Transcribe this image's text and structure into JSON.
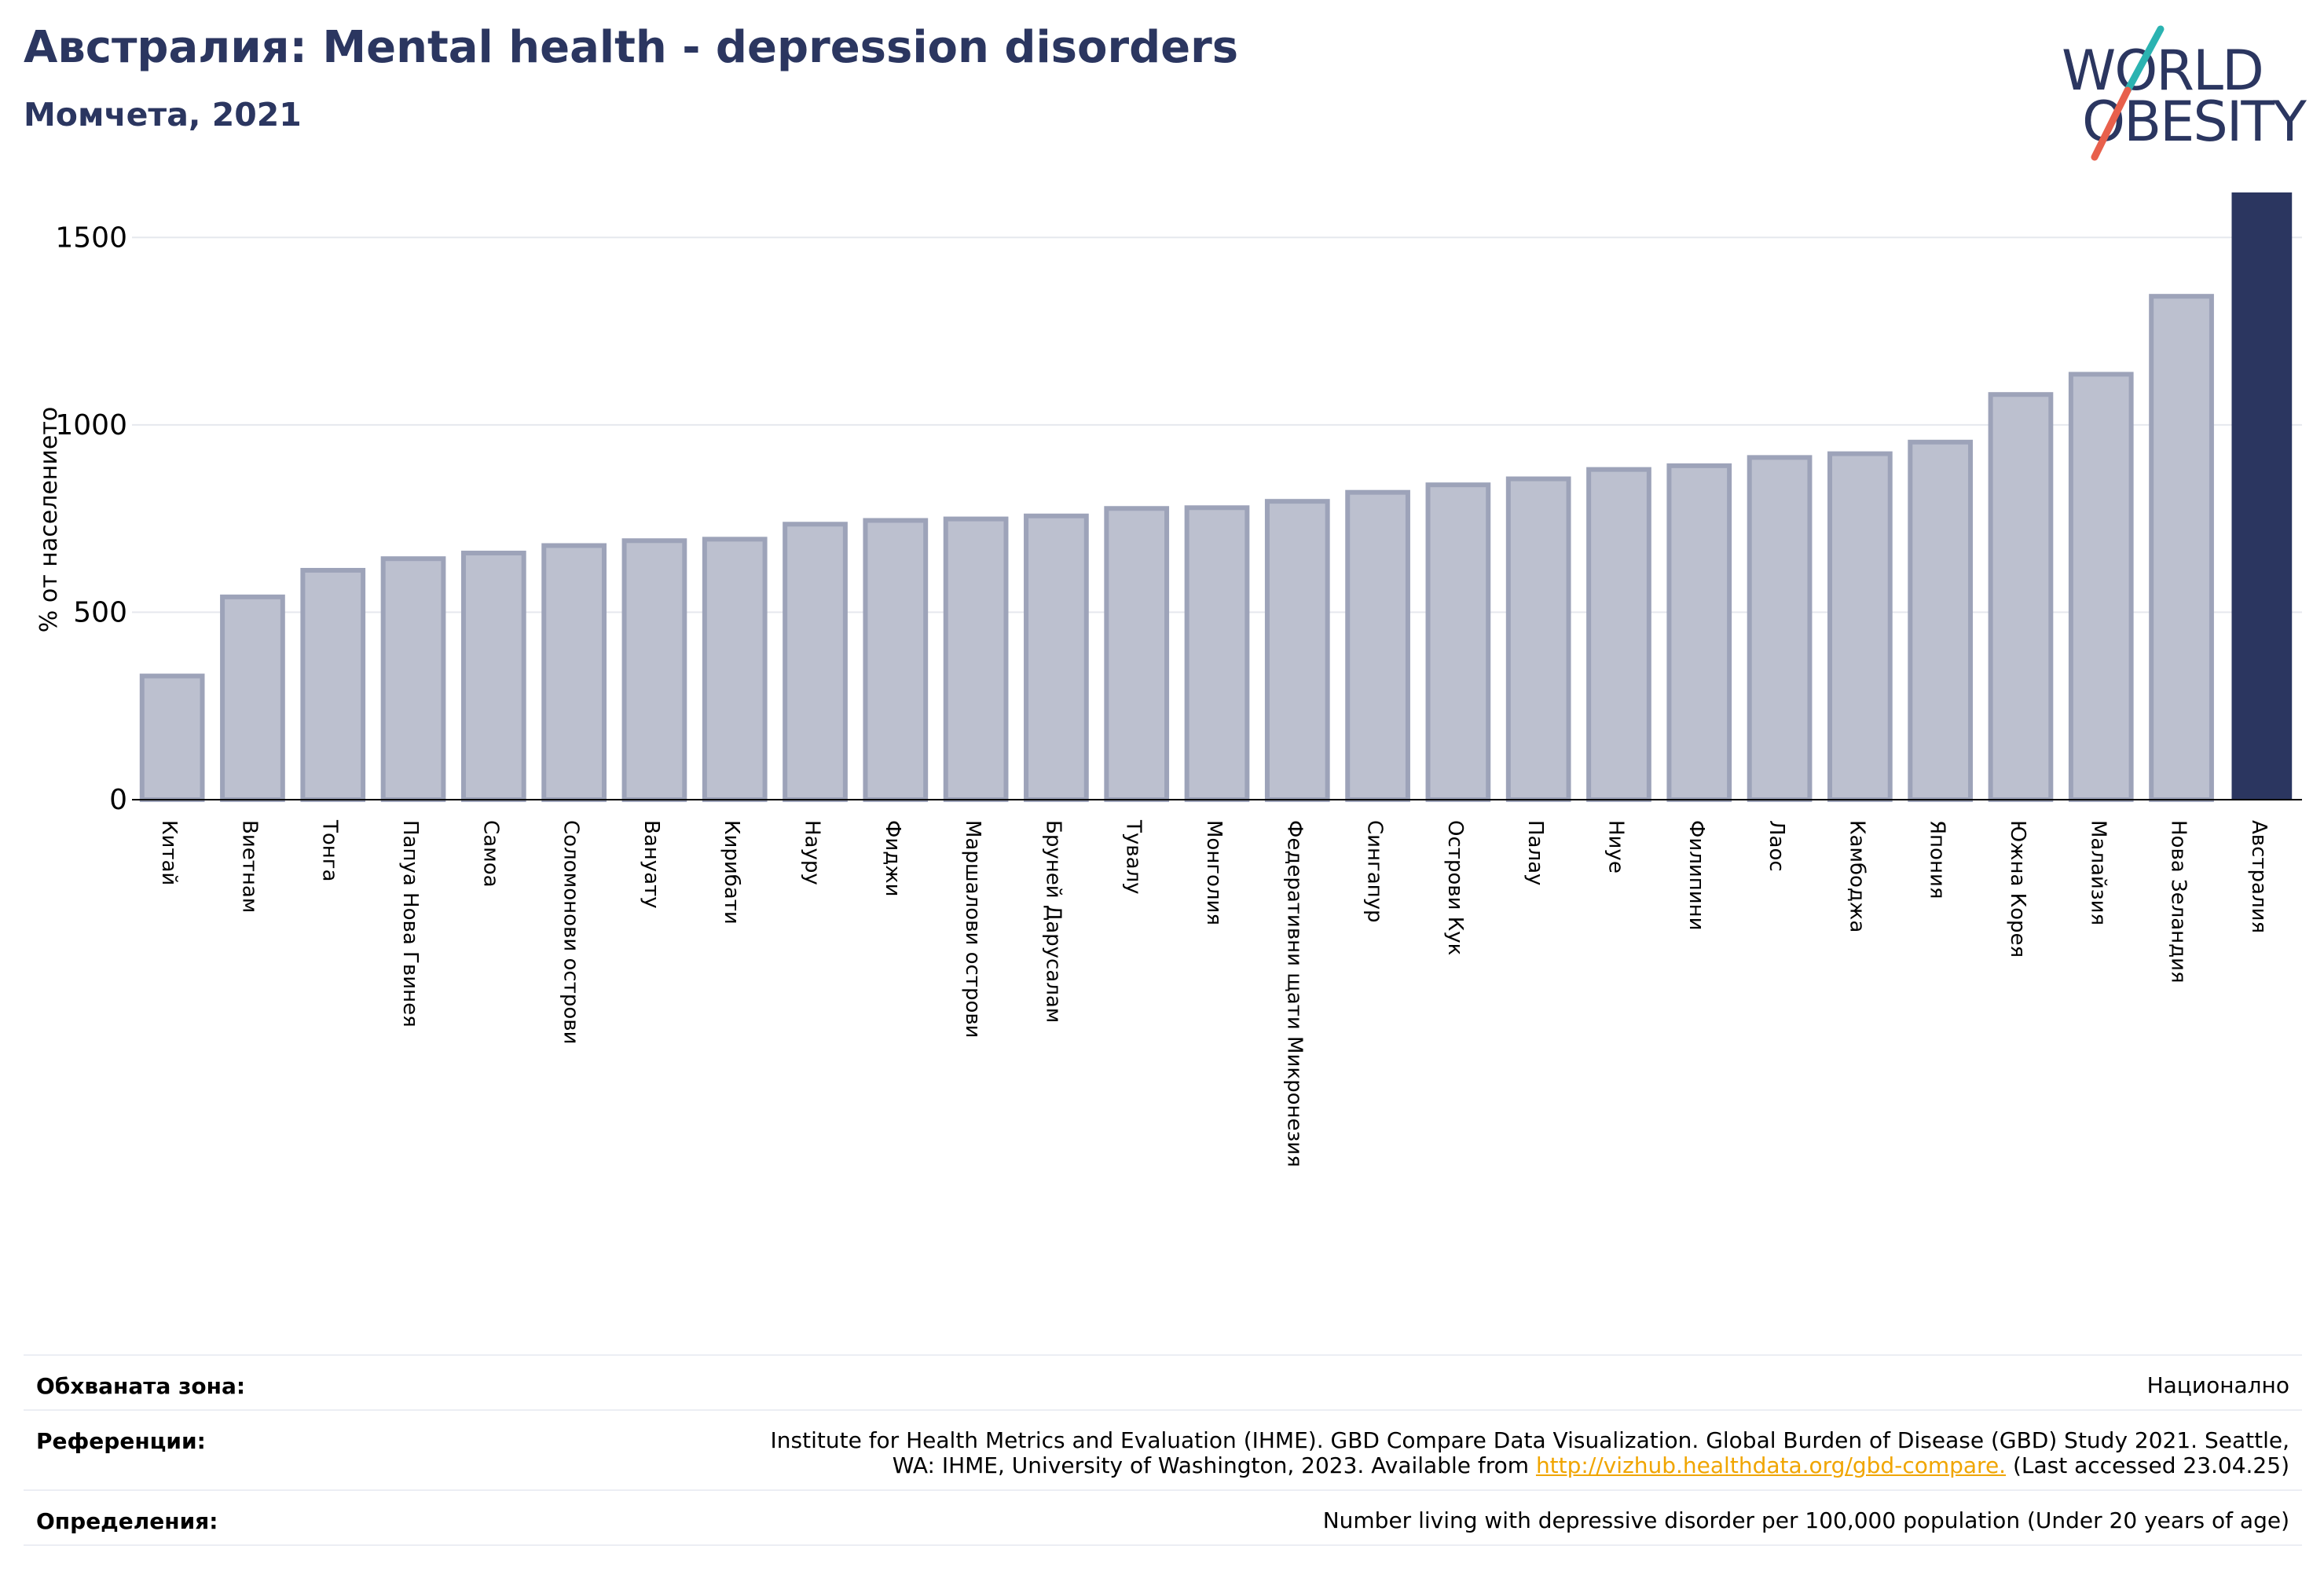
{
  "header": {
    "title": "Австралия: Mental health - depression disorders",
    "subtitle": "Момчета, 2021"
  },
  "logo": {
    "line1": "WORLD",
    "line2": "OBESITY",
    "colors": {
      "text": "#2b3660",
      "slash_top": "#2bb3b1",
      "slash_bottom": "#e8604c"
    }
  },
  "chart_data": {
    "type": "bar",
    "ylabel": "% от населението",
    "ylim": [
      0,
      1620
    ],
    "yticks": [
      0,
      500,
      1000,
      1500
    ],
    "grid": true,
    "categories": [
      "Китай",
      "Виетнам",
      "Тонга",
      "Папуа Нова Гвинея",
      "Самоа",
      "Соломонови острови",
      "Вануату",
      "Кирибати",
      "Науру",
      "Фиджи",
      "Маршалови острови",
      "Бруней Дарусалам",
      "Тувалу",
      "Монголия",
      "Федеративни щати Микронезия",
      "Сингапур",
      "Острови Кук",
      "Палау",
      "Ниуе",
      "Филипини",
      "Лаос",
      "Камбоджа",
      "Япония",
      "Южна Корея",
      "Малайзия",
      "Нова Зеландия",
      "Австралия"
    ],
    "values": [
      330,
      541,
      612,
      643,
      658,
      678,
      691,
      695,
      735,
      745,
      749,
      757,
      777,
      779,
      796,
      820,
      840,
      856,
      881,
      891,
      913,
      923,
      954,
      1081,
      1135,
      1343,
      1620
    ],
    "highlight": "Австралия",
    "colors": {
      "bar": "#bcc0cf",
      "bar_edge": "#9da3b9",
      "highlight": "#2b3660"
    }
  },
  "footer": {
    "rows": [
      {
        "key": "Обхваната зона:",
        "value": "Национално"
      },
      {
        "key": "Референции:",
        "value_line1": "Institute for Health Metrics and Evaluation (IHME). GBD Compare Data Visualization. Global Burden of Disease (GBD) Study 2021. Seattle,",
        "value_line2_pre": "WA: IHME, University of Washington, 2023. Available from ",
        "link": "http://vizhub.healthdata.org/gbd-compare.",
        "value_line2_post": " (Last accessed 23.04.25)"
      },
      {
        "key": "Определения:",
        "value": "Number living with depressive disorder per 100,000 population (Under 20 years of age)"
      }
    ]
  }
}
